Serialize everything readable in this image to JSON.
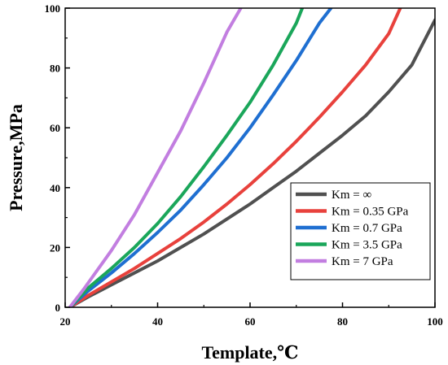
{
  "chart_data": {
    "type": "line",
    "title": "",
    "xlabel": "Template,℃",
    "ylabel": "Pressure,MPa",
    "xlim": [
      20,
      100
    ],
    "ylim": [
      0,
      100
    ],
    "xticks": [
      "20",
      "40",
      "60",
      "80",
      "100"
    ],
    "yticks": [
      "0",
      "20",
      "40",
      "60",
      "80",
      "100"
    ],
    "grid": false,
    "legend_position": "bottom-right",
    "series": [
      {
        "name": "Km = ∞",
        "color": "#505050",
        "x": [
          21,
          25,
          30,
          35,
          40,
          45,
          50,
          55,
          60,
          65,
          70,
          75,
          80,
          85,
          90,
          95,
          100
        ],
        "y": [
          0,
          3.5,
          7.5,
          11.5,
          15.5,
          20,
          24.5,
          29.5,
          34.5,
          40,
          45.5,
          51.5,
          57.5,
          64,
          72,
          81,
          96
        ]
      },
      {
        "name": "Km = 0.35 GPa",
        "color": "#e8413c",
        "x": [
          21,
          25,
          30,
          35,
          40,
          45,
          50,
          55,
          60,
          65,
          70,
          75,
          80,
          85,
          90,
          92.5
        ],
        "y": [
          0,
          4,
          8.5,
          13,
          18,
          23,
          28.5,
          34.5,
          41,
          48,
          55.5,
          63.5,
          72,
          81,
          91.5,
          100
        ]
      },
      {
        "name": "Km = 0.7 GPa",
        "color": "#1f6fd1",
        "x": [
          21,
          25,
          30,
          35,
          40,
          45,
          50,
          55,
          60,
          65,
          70,
          75,
          77.5
        ],
        "y": [
          0,
          5.5,
          11.5,
          18,
          25,
          32.5,
          41,
          50,
          60,
          71,
          82.5,
          95,
          100
        ]
      },
      {
        "name": "Km = 3.5 GPa",
        "color": "#1aa65a",
        "x": [
          21,
          25,
          30,
          35,
          40,
          45,
          50,
          55,
          60,
          65,
          70,
          71.3
        ],
        "y": [
          0,
          6.5,
          13,
          20,
          28,
          37,
          47,
          57.5,
          68.5,
          81,
          95,
          100
        ]
      },
      {
        "name": "Km = 7 GPa",
        "color": "#c27ee0",
        "x": [
          21,
          24,
          27,
          30,
          35,
          40,
          45,
          50,
          55,
          58
        ],
        "y": [
          0,
          6,
          12.5,
          19,
          31,
          45,
          59,
          75,
          92,
          100
        ]
      }
    ]
  }
}
